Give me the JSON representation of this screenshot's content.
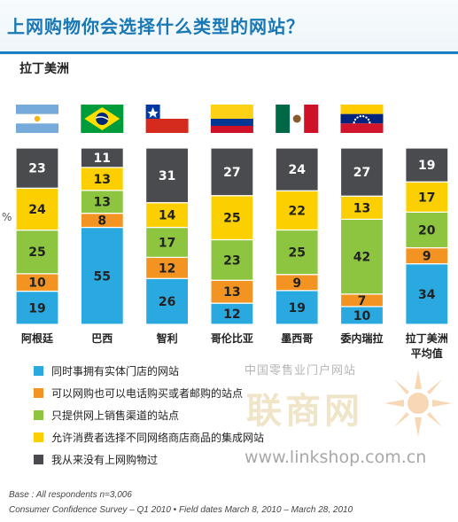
{
  "title": "上网购物你会选择什么类型的网站？",
  "region": "拉丁美洲",
  "percent_sign": "%",
  "colors": {
    "physical_store": "#29a9e0",
    "phone_mail": "#f39422",
    "online_only": "#8dc540",
    "aggregator": "#fcd000",
    "never": "#4a4b4e",
    "accent": "#1878b5"
  },
  "chart_data": {
    "type": "bar",
    "stacked": true,
    "normalized_percent": true,
    "categories": [
      "阿根廷",
      "巴西",
      "智利",
      "哥伦比亚",
      "墨西哥",
      "委内瑞拉",
      "拉丁美洲 平均值"
    ],
    "category_icons": [
      "flag-argentina",
      "flag-brazil",
      "flag-chile",
      "flag-colombia",
      "flag-mexico",
      "flag-venezuela",
      "none"
    ],
    "series": [
      {
        "name": "同时事拥有实体门店的网站",
        "color": "#29a9e0",
        "values": [
          19,
          55,
          26,
          12,
          19,
          10,
          34
        ]
      },
      {
        "name": "可以网购也可以电话购买或者邮购的站点",
        "color": "#f39422",
        "values": [
          10,
          8,
          12,
          13,
          9,
          7,
          9
        ]
      },
      {
        "name": "只提供网上销售渠道的站点",
        "color": "#8dc540",
        "values": [
          25,
          13,
          17,
          23,
          25,
          42,
          20
        ]
      },
      {
        "name": "允许消费者选择不同网络商店商品的集成网站",
        "color": "#fcd000",
        "values": [
          24,
          13,
          14,
          25,
          22,
          13,
          17
        ]
      },
      {
        "name": "我从来没有上网购物过",
        "color": "#4a4b4e",
        "values": [
          23,
          11,
          31,
          27,
          24,
          27,
          19
        ]
      }
    ],
    "ylim": [
      0,
      100
    ],
    "grid": false,
    "legend_position": "bottom-left"
  },
  "watermark": {
    "cn_text": "中国零售业门户网站",
    "brand": "联商网",
    "url": "www.linkshop.com.cn"
  },
  "footnotes": [
    "Base : All respondents n=3,006",
    "Consumer Confidence Survey – Q1 2010 • Field dates March 8, 2010 – March 28, 2010"
  ]
}
